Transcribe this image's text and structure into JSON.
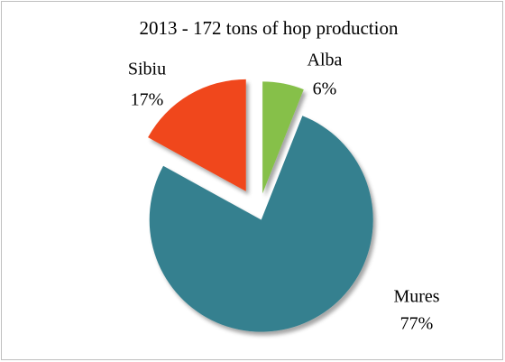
{
  "chart_data": {
    "type": "pie",
    "title": "2013 - 172 tons of hop production",
    "categories": [
      "Alba",
      "Mures",
      "Sibiu"
    ],
    "values": [
      6,
      77,
      17
    ],
    "value_labels": [
      "6%",
      "77%",
      "17%"
    ],
    "colors": [
      "#86c04a",
      "#35808f",
      "#f0471a"
    ]
  }
}
